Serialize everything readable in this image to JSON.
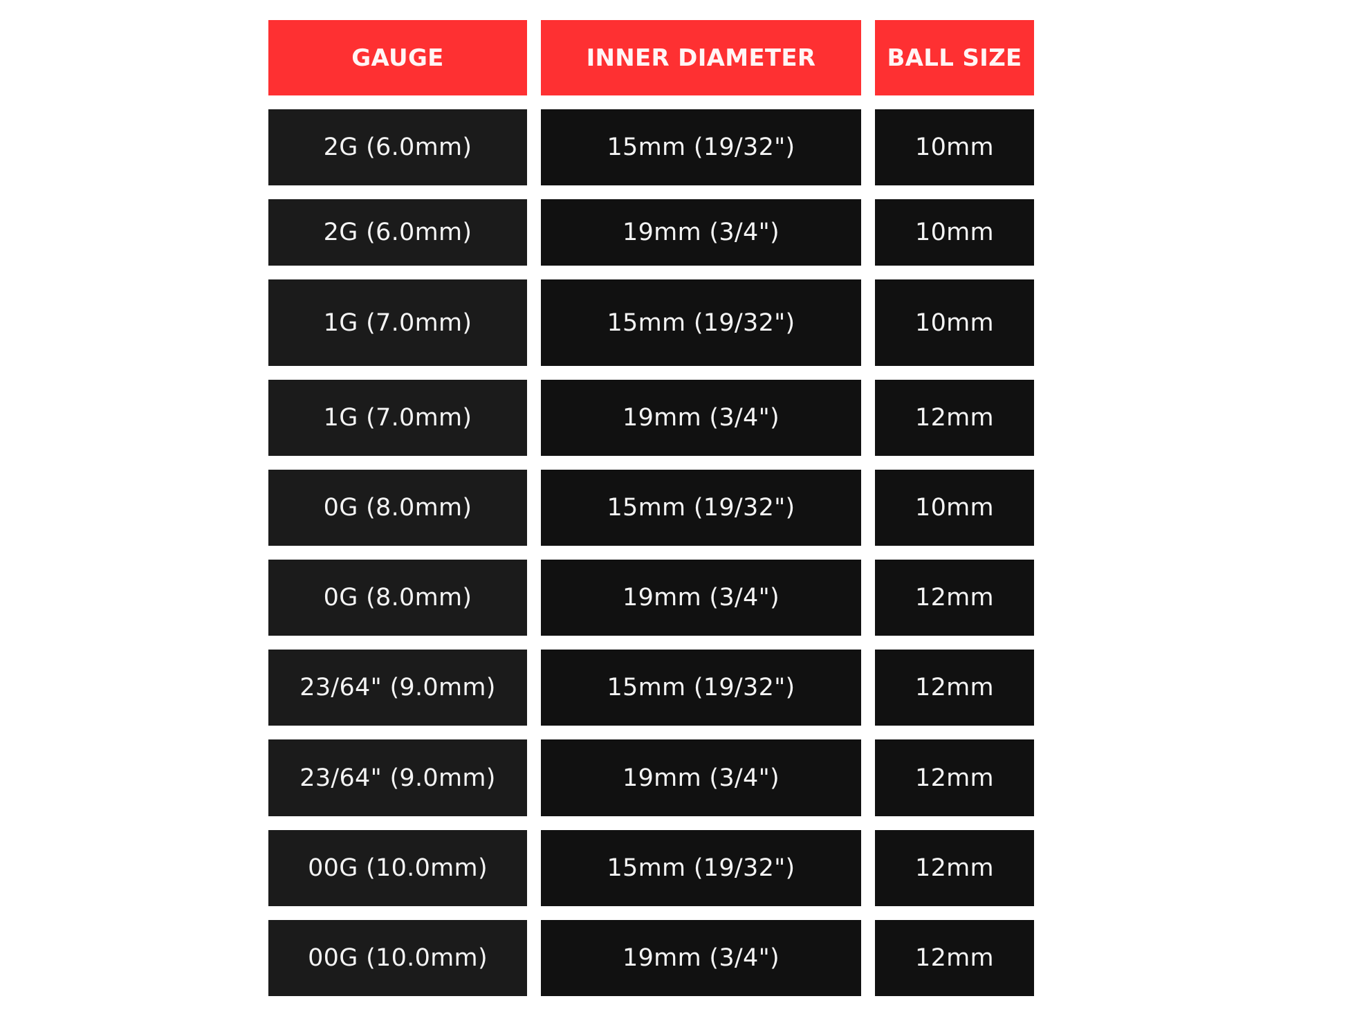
{
  "colors": {
    "header": "#fe3032",
    "cell_dark": "#111111",
    "cell_gauge": "#1b1b1b",
    "text": "#ffffff"
  },
  "headers": [
    "GAUGE",
    "INNER DIAMETER",
    "BALL SIZE"
  ],
  "rows": [
    [
      "2G (6.0mm)",
      "15mm (19/32\")",
      "10mm"
    ],
    [
      "2G (6.0mm)",
      "19mm (3/4\")",
      "10mm"
    ],
    [
      "1G (7.0mm)",
      "15mm (19/32\")",
      "10mm"
    ],
    [
      "1G (7.0mm)",
      "19mm (3/4\")",
      "12mm"
    ],
    [
      "0G (8.0mm)",
      "15mm (19/32\")",
      "10mm"
    ],
    [
      "0G (8.0mm)",
      "19mm (3/4\")",
      "12mm"
    ],
    [
      "23/64\" (9.0mm)",
      "15mm (19/32\")",
      "12mm"
    ],
    [
      "23/64\" (9.0mm)",
      "19mm (3/4\")",
      "12mm"
    ],
    [
      "00G (10.0mm)",
      "15mm (19/32\")",
      "12mm"
    ],
    [
      "00G (10.0mm)",
      "19mm (3/4\")",
      "12mm"
    ]
  ]
}
